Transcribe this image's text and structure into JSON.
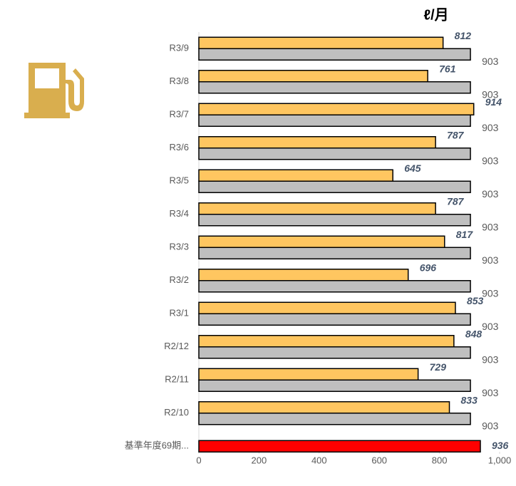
{
  "chart_data": {
    "type": "bar",
    "orientation": "horizontal",
    "unit_label": "ℓ/月",
    "categories": [
      "R3/9",
      "R3/8",
      "R3/7",
      "R3/6",
      "R3/5",
      "R3/4",
      "R3/3",
      "R3/2",
      "R3/1",
      "R2/12",
      "R2/11",
      "R2/10",
      "基準年度69期..."
    ],
    "series": [
      {
        "color": "#ffc660",
        "values": [
          812,
          761,
          914,
          787,
          645,
          787,
          817,
          696,
          853,
          848,
          729,
          833,
          null
        ]
      },
      {
        "color": "#bfbfbf",
        "values": [
          903,
          903,
          903,
          903,
          903,
          903,
          903,
          903,
          903,
          903,
          903,
          903,
          null
        ]
      },
      {
        "color": "#ff0000",
        "values": [
          null,
          null,
          null,
          null,
          null,
          null,
          null,
          null,
          null,
          null,
          null,
          null,
          936
        ]
      }
    ],
    "xlim": [
      0,
      1000
    ],
    "xticks": [
      0,
      200,
      400,
      600,
      800,
      {
        "value": 1000,
        "label": "1,000"
      }
    ]
  }
}
